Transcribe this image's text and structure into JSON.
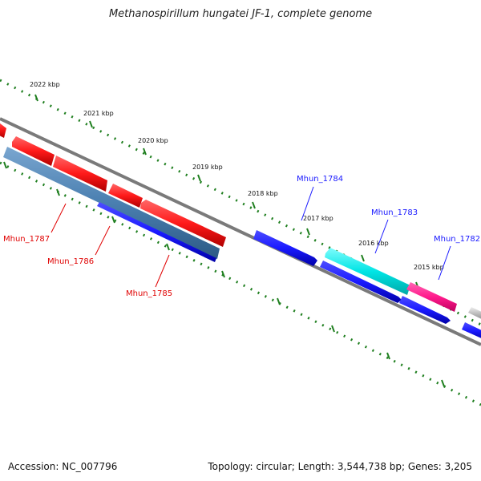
{
  "header": {
    "title": "Methanospirillum hungatei JF-1, complete genome"
  },
  "footer": {
    "accession": "Accession: NC_007796",
    "topology": "Topology: circular; Length: 3,544,738 bp; Genes: 3,205"
  },
  "map": {
    "kbp_labels": [
      "2022 kbp",
      "2021 kbp",
      "2020 kbp",
      "2019 kbp",
      "2018 kbp",
      "2017 kbp",
      "2016 kbp",
      "2015 kbp"
    ],
    "genes_top": [
      {
        "name": "Mhun_1784",
        "color": "#1a1aff"
      },
      {
        "name": "Mhun_1783",
        "color": "#1a1aff"
      },
      {
        "name": "Mhun_1782",
        "color": "#1a1aff"
      }
    ],
    "genes_bottom": [
      {
        "name": "Mhun_1787",
        "color": "#e00000"
      },
      {
        "name": "Mhun_1786",
        "color": "#e00000"
      },
      {
        "name": "Mhun_1785",
        "color": "#e00000"
      }
    ],
    "colors": {
      "backbone": "#7a7a7a",
      "ruler": "#1f7f1f",
      "red_feature": "#ff1a1a",
      "blue_feature": "#1a1aff",
      "steel_feature": "#4a7fb0",
      "cyan_feature": "#00e5e5",
      "magenta_feature": "#ff1a8c",
      "grey_feature": "#bbbbbb"
    }
  }
}
